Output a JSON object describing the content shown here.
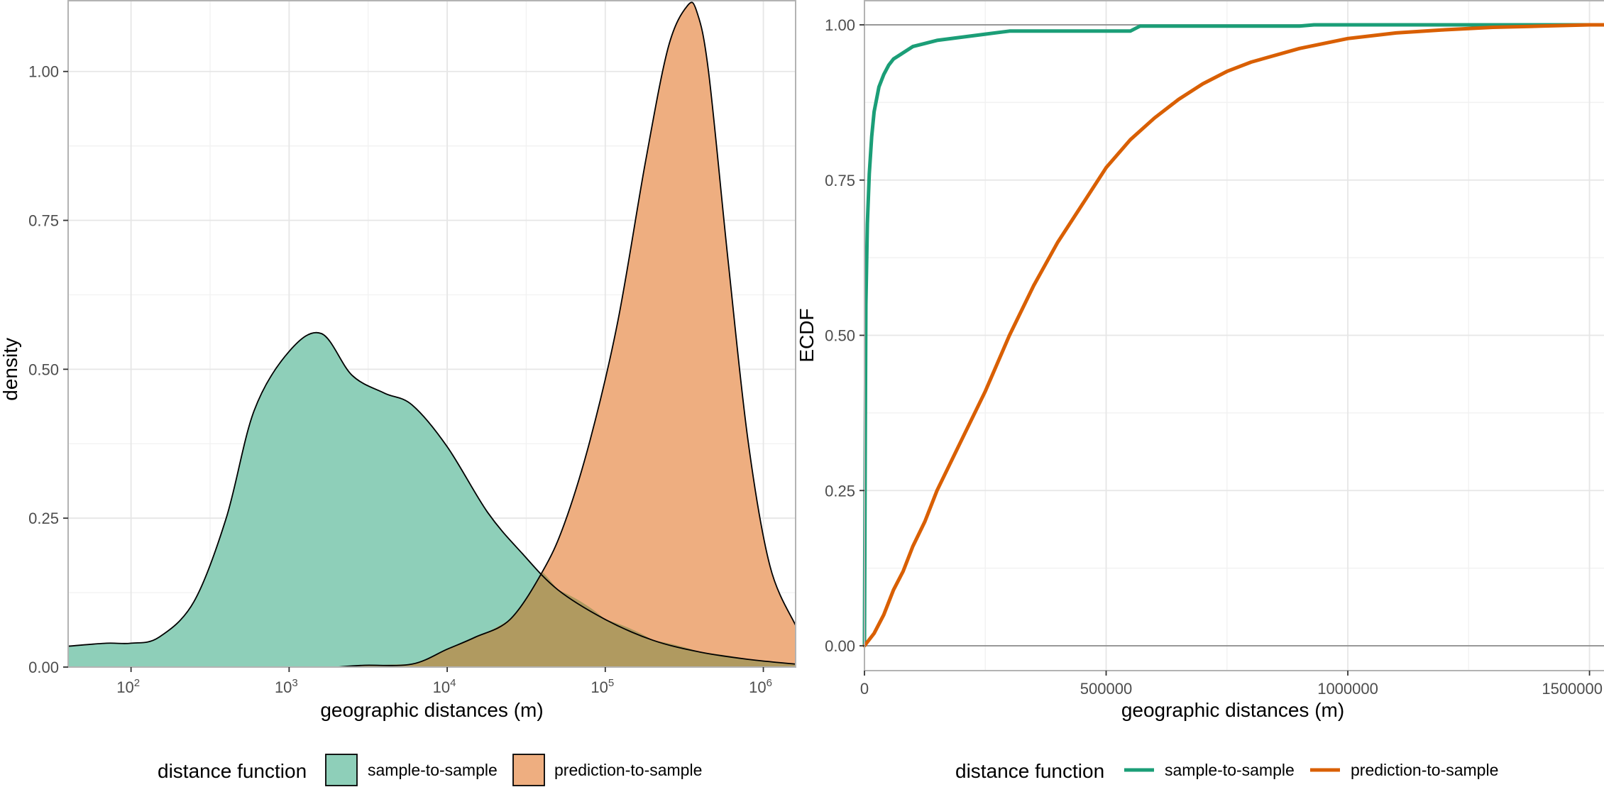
{
  "colors": {
    "sample_to_sample_fill": "#8ecfb9",
    "prediction_to_sample_fill": "#eeae80",
    "overlap_fill": "#b09a60",
    "sample_to_sample_line": "#1b9e77",
    "prediction_to_sample_line": "#d95f02",
    "grid_major": "#e6e6e6",
    "grid_minor": "#f2f2f2",
    "axis_text": "#4d4d4d"
  },
  "chart_data": [
    {
      "type": "area",
      "subtype": "density",
      "xlabel": "geographic distances (m)",
      "ylabel": "density",
      "x_scale": "log10",
      "xlim": [
        40,
        1600000
      ],
      "ylim": [
        0,
        1.12
      ],
      "x_tick_base": "10",
      "x_ticks": [
        {
          "value": 100,
          "exponent": "2"
        },
        {
          "value": 1000,
          "exponent": "3"
        },
        {
          "value": 10000,
          "exponent": "4"
        },
        {
          "value": 100000,
          "exponent": "5"
        },
        {
          "value": 1000000,
          "exponent": "6"
        }
      ],
      "y_ticks": [
        {
          "value": 0.0,
          "label": "0.00"
        },
        {
          "value": 0.25,
          "label": "0.25"
        },
        {
          "value": 0.5,
          "label": "0.50"
        },
        {
          "value": 0.75,
          "label": "0.75"
        },
        {
          "value": 1.0,
          "label": "1.00"
        }
      ],
      "grid": true,
      "legend": {
        "position": "bottom",
        "title": "distance function",
        "key": "fill",
        "entries": [
          "sample-to-sample",
          "prediction-to-sample"
        ]
      },
      "series": [
        {
          "name": "sample-to-sample",
          "x": [
            40,
            70,
            100,
            150,
            250,
            400,
            600,
            1000,
            1600,
            2500,
            4000,
            6000,
            10000,
            18000,
            30000,
            50000,
            100000,
            200000,
            400000,
            800000,
            1600000
          ],
          "y": [
            0.035,
            0.04,
            0.04,
            0.05,
            0.11,
            0.25,
            0.43,
            0.53,
            0.56,
            0.49,
            0.46,
            0.44,
            0.37,
            0.26,
            0.19,
            0.13,
            0.08,
            0.045,
            0.025,
            0.013,
            0.005
          ]
        },
        {
          "name": "prediction-to-sample",
          "x": [
            2000,
            3000,
            6000,
            10000,
            15000,
            25000,
            40000,
            55000,
            80000,
            120000,
            180000,
            250000,
            330000,
            380000,
            450000,
            600000,
            800000,
            1100000,
            1600000
          ],
          "y": [
            0.0,
            0.003,
            0.005,
            0.03,
            0.05,
            0.08,
            0.16,
            0.24,
            0.38,
            0.58,
            0.85,
            1.04,
            1.11,
            1.1,
            1.0,
            0.68,
            0.38,
            0.17,
            0.07
          ]
        }
      ]
    },
    {
      "type": "line",
      "subtype": "ecdf",
      "xlabel": "geographic distances (m)",
      "ylabel": "ECDF",
      "xlim": [
        0,
        1530000
      ],
      "ylim": [
        -0.04,
        1.04
      ],
      "x_ticks": [
        {
          "value": 0,
          "label": "0"
        },
        {
          "value": 500000,
          "label": "500000"
        },
        {
          "value": 1000000,
          "label": "1000000"
        },
        {
          "value": 1500000,
          "label": "1500000"
        }
      ],
      "y_ticks": [
        {
          "value": 0.0,
          "label": "0.00"
        },
        {
          "value": 0.25,
          "label": "0.25"
        },
        {
          "value": 0.5,
          "label": "0.50"
        },
        {
          "value": 0.75,
          "label": "0.75"
        },
        {
          "value": 1.0,
          "label": "1.00"
        }
      ],
      "reference_lines_y": [
        0,
        1
      ],
      "grid": true,
      "legend": {
        "position": "bottom",
        "title": "distance function",
        "key": "line",
        "entries": [
          "sample-to-sample",
          "prediction-to-sample"
        ]
      },
      "series": [
        {
          "name": "sample-to-sample",
          "x": [
            0,
            1500,
            3000,
            6000,
            10000,
            15000,
            20000,
            30000,
            40000,
            50000,
            60000,
            80000,
            100000,
            150000,
            200000,
            250000,
            300000,
            350000,
            450000,
            550000,
            570000,
            700000,
            900000,
            930000,
            1200000,
            1530000
          ],
          "y": [
            0.0,
            0.3,
            0.55,
            0.68,
            0.76,
            0.82,
            0.86,
            0.9,
            0.92,
            0.935,
            0.945,
            0.955,
            0.965,
            0.975,
            0.98,
            0.985,
            0.99,
            0.99,
            0.99,
            0.99,
            0.998,
            0.998,
            0.998,
            1.0,
            1.0,
            1.0
          ]
        },
        {
          "name": "prediction-to-sample",
          "x": [
            0,
            20000,
            40000,
            60000,
            80000,
            100000,
            125000,
            150000,
            175000,
            200000,
            250000,
            300000,
            350000,
            400000,
            450000,
            500000,
            550000,
            600000,
            650000,
            700000,
            750000,
            800000,
            900000,
            1000000,
            1100000,
            1200000,
            1300000,
            1400000,
            1500000,
            1530000
          ],
          "y": [
            0.0,
            0.02,
            0.05,
            0.09,
            0.12,
            0.16,
            0.2,
            0.25,
            0.29,
            0.33,
            0.41,
            0.5,
            0.58,
            0.65,
            0.71,
            0.77,
            0.815,
            0.85,
            0.88,
            0.905,
            0.925,
            0.94,
            0.962,
            0.978,
            0.987,
            0.992,
            0.996,
            0.998,
            1.0,
            1.0
          ]
        }
      ]
    }
  ]
}
